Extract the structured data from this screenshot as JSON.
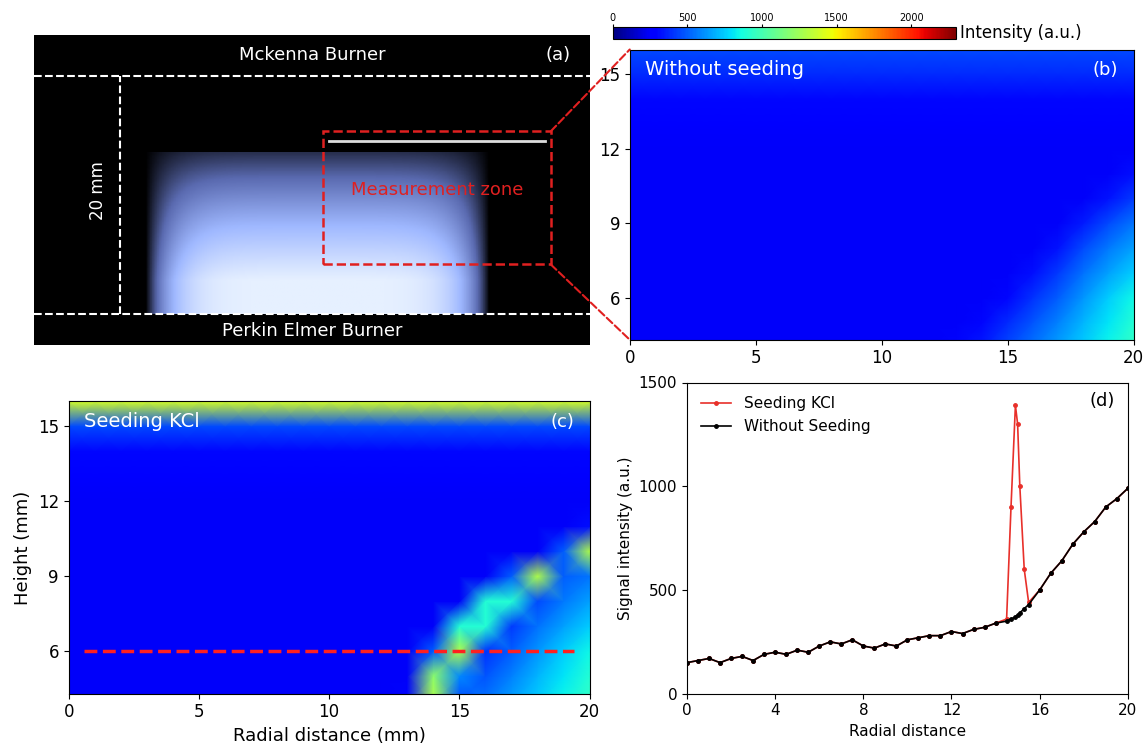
{
  "photo": {
    "top_label": "Mckenna Burner",
    "bottom_label": "Perkin Elmer Burner",
    "distance_label": "20 mm",
    "zone_label": "Measurement zone",
    "panel_label": "(a)"
  },
  "chart_data": [
    {
      "type": "heatmap",
      "annotation": "Without seeding",
      "panel_label": "(b)",
      "x": [
        0,
        1,
        2,
        3,
        4,
        5,
        6,
        7,
        8,
        9,
        10,
        11,
        12,
        13,
        14,
        15,
        16,
        17,
        18,
        19,
        20
      ],
      "y": [
        4,
        5,
        6,
        7,
        8,
        9,
        10,
        11,
        12,
        13,
        14,
        15,
        16
      ],
      "cells": [
        [
          250,
          250,
          250,
          250,
          250,
          250,
          250,
          250,
          250,
          250,
          250,
          250,
          250,
          300,
          350,
          450,
          550,
          650,
          750,
          850,
          950
        ],
        [
          250,
          250,
          250,
          250,
          250,
          250,
          250,
          250,
          250,
          250,
          250,
          250,
          250,
          250,
          300,
          380,
          480,
          580,
          700,
          800,
          900
        ],
        [
          250,
          250,
          250,
          250,
          250,
          250,
          250,
          250,
          250,
          250,
          250,
          250,
          250,
          250,
          250,
          300,
          400,
          500,
          620,
          750,
          850
        ],
        [
          250,
          250,
          250,
          250,
          250,
          250,
          250,
          250,
          250,
          250,
          250,
          250,
          250,
          250,
          250,
          250,
          320,
          420,
          540,
          650,
          750
        ],
        [
          250,
          250,
          250,
          250,
          250,
          250,
          250,
          250,
          250,
          250,
          250,
          250,
          250,
          250,
          250,
          250,
          250,
          330,
          450,
          560,
          650
        ],
        [
          250,
          250,
          250,
          250,
          250,
          250,
          250,
          250,
          250,
          250,
          250,
          250,
          250,
          250,
          250,
          250,
          250,
          250,
          350,
          450,
          550
        ],
        [
          250,
          250,
          250,
          250,
          250,
          250,
          250,
          250,
          250,
          250,
          250,
          250,
          250,
          250,
          250,
          250,
          250,
          250,
          250,
          330,
          420
        ],
        [
          250,
          250,
          250,
          250,
          250,
          250,
          250,
          250,
          250,
          250,
          250,
          250,
          250,
          250,
          250,
          250,
          250,
          250,
          250,
          250,
          320
        ],
        [
          250,
          250,
          250,
          250,
          250,
          250,
          250,
          250,
          250,
          250,
          250,
          250,
          250,
          250,
          250,
          250,
          250,
          250,
          250,
          250,
          250
        ],
        [
          260,
          260,
          260,
          260,
          260,
          260,
          260,
          260,
          260,
          260,
          260,
          260,
          260,
          260,
          260,
          260,
          260,
          260,
          260,
          260,
          260
        ],
        [
          300,
          300,
          300,
          300,
          300,
          300,
          300,
          300,
          300,
          300,
          300,
          300,
          300,
          300,
          300,
          300,
          300,
          300,
          300,
          300,
          300
        ],
        [
          380,
          380,
          380,
          380,
          380,
          380,
          380,
          380,
          380,
          380,
          380,
          380,
          380,
          380,
          380,
          380,
          380,
          380,
          380,
          380,
          380
        ],
        [
          450,
          450,
          450,
          450,
          450,
          450,
          450,
          450,
          450,
          450,
          450,
          450,
          450,
          450,
          450,
          450,
          450,
          450,
          450,
          450,
          450
        ]
      ],
      "xlim": [
        0,
        20
      ],
      "ylim": [
        4.3,
        16
      ],
      "xticks": [
        0,
        5,
        10,
        15,
        20
      ],
      "yticks": [
        6,
        9,
        12,
        15
      ],
      "colorbar": {
        "label": "Intensity (a.u.)",
        "range": [
          0,
          2300
        ],
        "ticks": [
          0,
          500,
          1000,
          1500,
          2000
        ]
      }
    },
    {
      "type": "heatmap",
      "annotation": "Seeding KCl",
      "panel_label": "(c)",
      "x_label": "Radial distance (mm)",
      "y_label": "Height (mm)",
      "x": [
        0,
        1,
        2,
        3,
        4,
        5,
        6,
        7,
        8,
        9,
        10,
        11,
        12,
        13,
        14,
        15,
        16,
        17,
        18,
        19,
        20
      ],
      "y": [
        4,
        5,
        6,
        7,
        8,
        9,
        10,
        11,
        12,
        13,
        14,
        15,
        16
      ],
      "cells": [
        [
          250,
          250,
          250,
          250,
          250,
          250,
          250,
          250,
          250,
          250,
          250,
          250,
          250,
          300,
          1300,
          450,
          550,
          650,
          750,
          850,
          950
        ],
        [
          250,
          250,
          250,
          250,
          250,
          250,
          250,
          250,
          250,
          250,
          250,
          250,
          250,
          250,
          1200,
          600,
          480,
          580,
          700,
          800,
          900
        ],
        [
          250,
          250,
          250,
          250,
          250,
          250,
          250,
          250,
          250,
          250,
          250,
          250,
          250,
          250,
          500,
          1300,
          400,
          500,
          620,
          750,
          850
        ],
        [
          250,
          250,
          250,
          250,
          250,
          250,
          250,
          250,
          250,
          250,
          250,
          250,
          250,
          250,
          250,
          900,
          900,
          420,
          540,
          650,
          750
        ],
        [
          250,
          250,
          250,
          250,
          250,
          250,
          250,
          250,
          250,
          250,
          250,
          250,
          250,
          250,
          250,
          250,
          900,
          900,
          450,
          560,
          650
        ],
        [
          250,
          250,
          250,
          250,
          250,
          250,
          250,
          250,
          250,
          250,
          250,
          250,
          250,
          250,
          250,
          250,
          250,
          500,
          1300,
          500,
          550
        ],
        [
          250,
          250,
          250,
          250,
          250,
          250,
          250,
          250,
          250,
          250,
          250,
          250,
          250,
          250,
          250,
          250,
          250,
          250,
          250,
          500,
          1300
        ],
        [
          250,
          250,
          250,
          250,
          250,
          250,
          250,
          250,
          250,
          250,
          250,
          250,
          250,
          250,
          250,
          250,
          250,
          250,
          250,
          250,
          320
        ],
        [
          250,
          250,
          250,
          250,
          250,
          250,
          250,
          250,
          250,
          250,
          250,
          250,
          250,
          250,
          250,
          250,
          250,
          250,
          250,
          250,
          250
        ],
        [
          260,
          260,
          260,
          260,
          260,
          260,
          260,
          260,
          260,
          260,
          260,
          260,
          260,
          260,
          260,
          260,
          260,
          260,
          260,
          260,
          260
        ],
        [
          300,
          300,
          300,
          300,
          300,
          300,
          300,
          300,
          300,
          300,
          300,
          300,
          300,
          300,
          300,
          300,
          300,
          300,
          300,
          300,
          300
        ],
        [
          450,
          450,
          450,
          450,
          450,
          450,
          450,
          450,
          450,
          450,
          450,
          450,
          450,
          450,
          450,
          450,
          450,
          450,
          450,
          450,
          450
        ],
        [
          1400,
          1400,
          1400,
          1400,
          1400,
          1400,
          1400,
          1400,
          1400,
          1400,
          1400,
          1400,
          1400,
          1400,
          1400,
          1400,
          1400,
          1400,
          1400,
          1400,
          1400
        ]
      ],
      "xlim": [
        0,
        20
      ],
      "ylim": [
        4.3,
        16
      ],
      "xticks": [
        0,
        5,
        10,
        15,
        20
      ],
      "yticks": [
        6,
        9,
        12,
        15
      ],
      "reference_line": {
        "y": 6,
        "color": "#ff2020",
        "line_style": "dashed"
      }
    },
    {
      "type": "line",
      "panel_label": "(d)",
      "x_label": "Radial distance",
      "y_label": "Signal intensity (a.u.)",
      "x": [
        0,
        0.5,
        1,
        1.5,
        2,
        2.5,
        3,
        3.5,
        4,
        4.5,
        5,
        5.5,
        6,
        6.5,
        7,
        7.5,
        8,
        8.5,
        9,
        9.5,
        10,
        10.5,
        11,
        11.5,
        12,
        12.5,
        13,
        13.5,
        14,
        14.5,
        14.7,
        14.9,
        15,
        15.1,
        15.3,
        15.5,
        16,
        16.5,
        17,
        17.5,
        18,
        18.5,
        19,
        19.5,
        20
      ],
      "series": [
        {
          "name": "Seeding KCl",
          "color": "#e8302a",
          "marker": "o",
          "values": [
            150,
            160,
            170,
            150,
            170,
            180,
            160,
            190,
            200,
            190,
            210,
            200,
            230,
            250,
            240,
            260,
            230,
            220,
            240,
            230,
            260,
            270,
            280,
            280,
            300,
            290,
            310,
            320,
            340,
            360,
            900,
            1390,
            1300,
            1000,
            600,
            440,
            500,
            580,
            640,
            720,
            780,
            830,
            900,
            940,
            990
          ]
        },
        {
          "name": "Without Seeding",
          "color": "#000000",
          "marker": "o",
          "values": [
            150,
            160,
            170,
            150,
            170,
            180,
            160,
            190,
            200,
            190,
            210,
            200,
            230,
            250,
            240,
            260,
            230,
            220,
            240,
            230,
            260,
            270,
            280,
            280,
            300,
            290,
            310,
            320,
            340,
            350,
            360,
            370,
            380,
            390,
            410,
            430,
            500,
            580,
            640,
            720,
            780,
            830,
            900,
            940,
            990
          ]
        }
      ],
      "xlim": [
        0,
        20
      ],
      "ylim": [
        0,
        1500
      ],
      "xticks": [
        0,
        4,
        8,
        12,
        16,
        20
      ],
      "yticks": [
        0,
        500,
        1000,
        1500
      ],
      "legend": "upper left"
    }
  ]
}
